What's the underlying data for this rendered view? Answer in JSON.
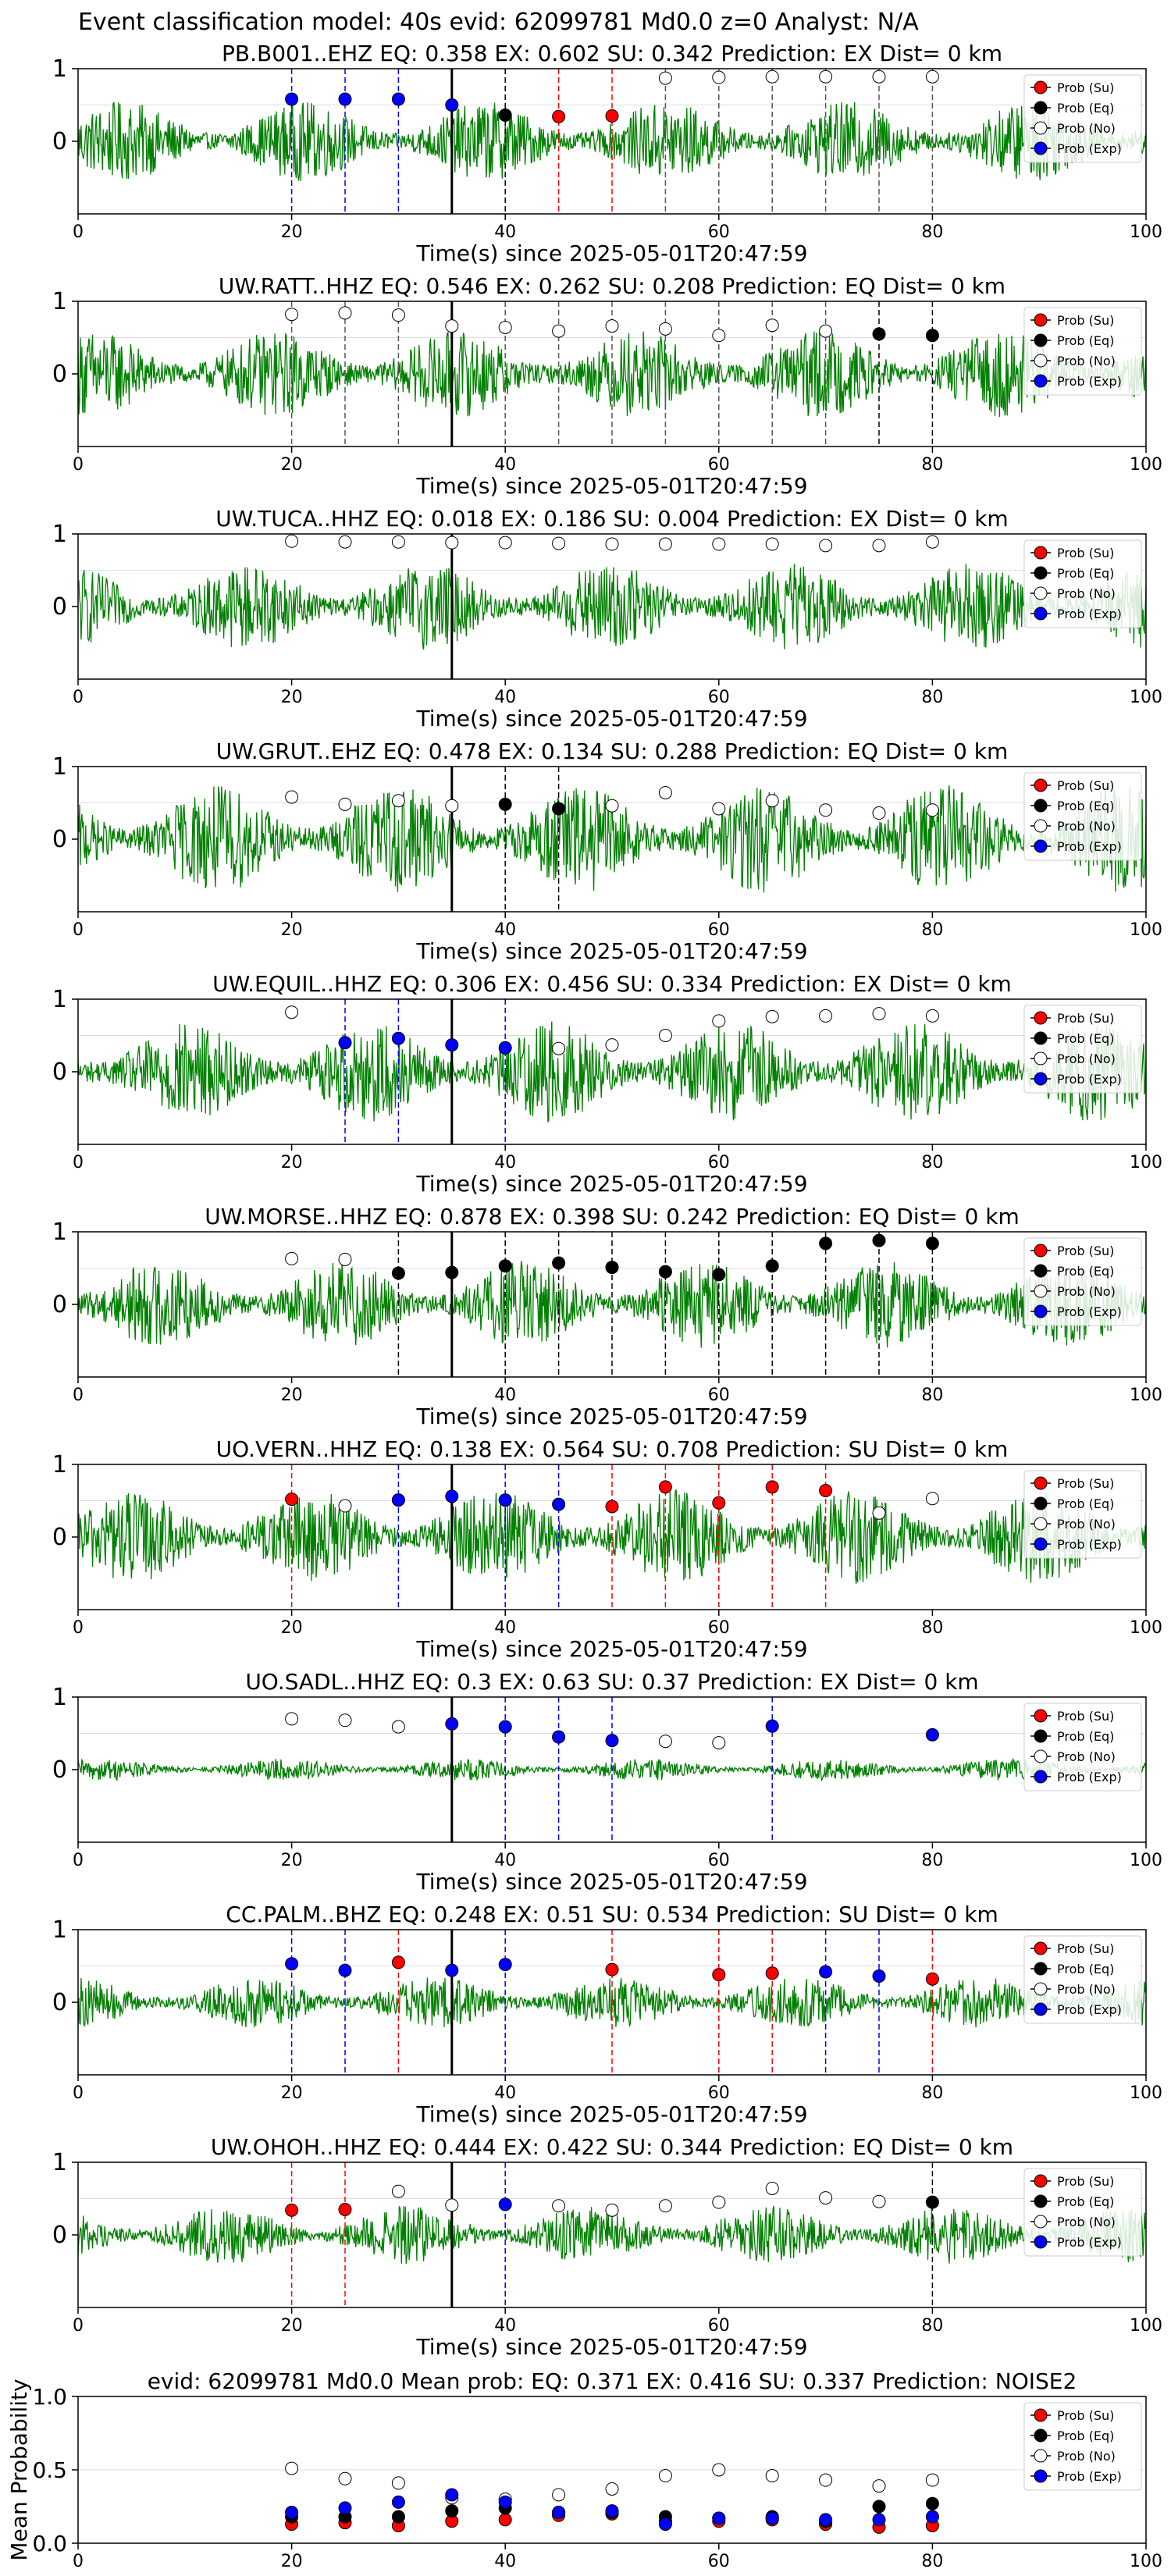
{
  "suptitle": "Event classification model: 40s evid: 62099781 Md0.0 z=0 Analyst: N/A",
  "colors": {
    "waveform": "#008000",
    "su": "#ff0000",
    "eq": "#000000",
    "no": "#ffffff",
    "exp": "#0000ff",
    "pick_line": "#000000"
  },
  "legend_labels": {
    "su": "Prob (Su)",
    "eq": "Prob (Eq)",
    "no": "Prob (No)",
    "exp": "Prob (Exp)"
  },
  "legend_placement": "top-right",
  "chart_data": [
    {
      "type": "line",
      "title": "PB.B001..EHZ   EQ: 0.358   EX: 0.602   SU: 0.342   Prediction: EX    Dist= 0 km",
      "xlabel": "Time(s) since 2025-05-01T20:47:59",
      "ylabel": "",
      "xlim": [
        0,
        100
      ],
      "ylim": [
        -1,
        1
      ],
      "x_ticks": [
        0,
        20,
        40,
        60,
        80,
        100
      ],
      "y_ticks": [
        0,
        1
      ],
      "pick_time": 35,
      "waveform_amplitude": 0.55,
      "windows": [
        20,
        25,
        30,
        35,
        40,
        45,
        50,
        55,
        60,
        65,
        70,
        75,
        80
      ],
      "points": [
        {
          "x": 20,
          "y": 0.58,
          "class": "exp"
        },
        {
          "x": 25,
          "y": 0.58,
          "class": "exp"
        },
        {
          "x": 30,
          "y": 0.58,
          "class": "exp"
        },
        {
          "x": 35,
          "y": 0.5,
          "class": "exp"
        },
        {
          "x": 40,
          "y": 0.36,
          "class": "eq"
        },
        {
          "x": 45,
          "y": 0.34,
          "class": "su"
        },
        {
          "x": 50,
          "y": 0.35,
          "class": "su"
        },
        {
          "x": 55,
          "y": 0.87,
          "class": "no"
        },
        {
          "x": 60,
          "y": 0.88,
          "class": "no"
        },
        {
          "x": 65,
          "y": 0.89,
          "class": "no"
        },
        {
          "x": 70,
          "y": 0.89,
          "class": "no"
        },
        {
          "x": 75,
          "y": 0.89,
          "class": "no"
        },
        {
          "x": 80,
          "y": 0.89,
          "class": "no"
        }
      ]
    },
    {
      "type": "line",
      "title": "UW.RATT..HHZ   EQ: 0.546   EX: 0.262   SU: 0.208   Prediction: EQ    Dist= 0 km",
      "xlabel": "Time(s) since 2025-05-01T20:47:59",
      "ylabel": "",
      "xlim": [
        0,
        100
      ],
      "ylim": [
        -1,
        1
      ],
      "x_ticks": [
        0,
        20,
        40,
        60,
        80,
        100
      ],
      "y_ticks": [
        0,
        1
      ],
      "pick_time": 35,
      "waveform_amplitude": 0.6,
      "windows": [
        20,
        25,
        30,
        35,
        40,
        45,
        50,
        55,
        60,
        65,
        70,
        75,
        80
      ],
      "points": [
        {
          "x": 20,
          "y": 0.82,
          "class": "no"
        },
        {
          "x": 25,
          "y": 0.84,
          "class": "no"
        },
        {
          "x": 30,
          "y": 0.81,
          "class": "no"
        },
        {
          "x": 35,
          "y": 0.66,
          "class": "no"
        },
        {
          "x": 40,
          "y": 0.64,
          "class": "no"
        },
        {
          "x": 45,
          "y": 0.59,
          "class": "no"
        },
        {
          "x": 50,
          "y": 0.66,
          "class": "no"
        },
        {
          "x": 55,
          "y": 0.62,
          "class": "no"
        },
        {
          "x": 60,
          "y": 0.53,
          "class": "no"
        },
        {
          "x": 65,
          "y": 0.67,
          "class": "no"
        },
        {
          "x": 70,
          "y": 0.59,
          "class": "no"
        },
        {
          "x": 75,
          "y": 0.55,
          "class": "eq"
        },
        {
          "x": 80,
          "y": 0.53,
          "class": "eq"
        }
      ]
    },
    {
      "type": "line",
      "title": "UW.TUCA..HHZ   EQ: 0.018   EX: 0.186   SU: 0.004   Prediction: EX    Dist= 0 km",
      "xlabel": "Time(s) since 2025-05-01T20:47:59",
      "ylabel": "",
      "xlim": [
        0,
        100
      ],
      "ylim": [
        -1,
        1
      ],
      "x_ticks": [
        0,
        20,
        40,
        60,
        80,
        100
      ],
      "y_ticks": [
        0,
        1
      ],
      "pick_time": 35,
      "waveform_amplitude": 0.6,
      "windows": [],
      "points": [
        {
          "x": 20,
          "y": 0.9,
          "class": "no"
        },
        {
          "x": 25,
          "y": 0.89,
          "class": "no"
        },
        {
          "x": 30,
          "y": 0.89,
          "class": "no"
        },
        {
          "x": 35,
          "y": 0.88,
          "class": "no"
        },
        {
          "x": 40,
          "y": 0.88,
          "class": "no"
        },
        {
          "x": 45,
          "y": 0.87,
          "class": "no"
        },
        {
          "x": 50,
          "y": 0.86,
          "class": "no"
        },
        {
          "x": 55,
          "y": 0.86,
          "class": "no"
        },
        {
          "x": 60,
          "y": 0.86,
          "class": "no"
        },
        {
          "x": 65,
          "y": 0.86,
          "class": "no"
        },
        {
          "x": 70,
          "y": 0.84,
          "class": "no"
        },
        {
          "x": 75,
          "y": 0.84,
          "class": "no"
        },
        {
          "x": 80,
          "y": 0.89,
          "class": "no"
        }
      ]
    },
    {
      "type": "line",
      "title": "UW.GRUT..EHZ   EQ: 0.478   EX: 0.134   SU: 0.288   Prediction: EQ    Dist= 0 km",
      "xlabel": "Time(s) since 2025-05-01T20:47:59",
      "ylabel": "",
      "xlim": [
        0,
        100
      ],
      "ylim": [
        -1,
        1
      ],
      "x_ticks": [
        0,
        20,
        40,
        60,
        80,
        100
      ],
      "y_ticks": [
        0,
        1
      ],
      "pick_time": 35,
      "waveform_amplitude": 0.75,
      "windows": [
        40,
        45
      ],
      "points": [
        {
          "x": 20,
          "y": 0.58,
          "class": "no"
        },
        {
          "x": 25,
          "y": 0.48,
          "class": "no"
        },
        {
          "x": 30,
          "y": 0.53,
          "class": "no"
        },
        {
          "x": 35,
          "y": 0.46,
          "class": "no"
        },
        {
          "x": 40,
          "y": 0.48,
          "class": "eq"
        },
        {
          "x": 45,
          "y": 0.42,
          "class": "eq"
        },
        {
          "x": 50,
          "y": 0.46,
          "class": "no"
        },
        {
          "x": 55,
          "y": 0.64,
          "class": "no"
        },
        {
          "x": 60,
          "y": 0.42,
          "class": "no"
        },
        {
          "x": 65,
          "y": 0.53,
          "class": "no"
        },
        {
          "x": 70,
          "y": 0.4,
          "class": "no"
        },
        {
          "x": 75,
          "y": 0.36,
          "class": "no"
        },
        {
          "x": 80,
          "y": 0.4,
          "class": "no"
        }
      ]
    },
    {
      "type": "line",
      "title": "UW.EQUIL..HHZ   EQ: 0.306   EX: 0.456   SU: 0.334   Prediction: EX    Dist= 0 km",
      "xlabel": "Time(s) since 2025-05-01T20:47:59",
      "ylabel": "",
      "xlim": [
        0,
        100
      ],
      "ylim": [
        -1,
        1
      ],
      "x_ticks": [
        0,
        20,
        40,
        60,
        80,
        100
      ],
      "y_ticks": [
        0,
        1
      ],
      "pick_time": 35,
      "waveform_amplitude": 0.7,
      "windows": [
        25,
        30,
        35,
        40
      ],
      "points": [
        {
          "x": 20,
          "y": 0.82,
          "class": "no"
        },
        {
          "x": 25,
          "y": 0.4,
          "class": "exp"
        },
        {
          "x": 30,
          "y": 0.46,
          "class": "exp"
        },
        {
          "x": 35,
          "y": 0.37,
          "class": "exp"
        },
        {
          "x": 40,
          "y": 0.33,
          "class": "exp"
        },
        {
          "x": 45,
          "y": 0.32,
          "class": "no"
        },
        {
          "x": 50,
          "y": 0.37,
          "class": "no"
        },
        {
          "x": 55,
          "y": 0.5,
          "class": "no"
        },
        {
          "x": 60,
          "y": 0.7,
          "class": "no"
        },
        {
          "x": 65,
          "y": 0.76,
          "class": "no"
        },
        {
          "x": 70,
          "y": 0.77,
          "class": "no"
        },
        {
          "x": 75,
          "y": 0.8,
          "class": "no"
        },
        {
          "x": 80,
          "y": 0.77,
          "class": "no"
        }
      ]
    },
    {
      "type": "line",
      "title": "UW.MORSE..HHZ   EQ: 0.878   EX: 0.398   SU: 0.242   Prediction: EQ    Dist= 0 km",
      "xlabel": "Time(s) since 2025-05-01T20:47:59",
      "ylabel": "",
      "xlim": [
        0,
        100
      ],
      "ylim": [
        -1,
        1
      ],
      "x_ticks": [
        0,
        20,
        40,
        60,
        80,
        100
      ],
      "y_ticks": [
        0,
        1
      ],
      "pick_time": 35,
      "waveform_amplitude": 0.6,
      "windows": [
        30,
        35,
        40,
        45,
        50,
        55,
        60,
        65,
        70,
        75,
        80
      ],
      "points": [
        {
          "x": 20,
          "y": 0.63,
          "class": "no"
        },
        {
          "x": 25,
          "y": 0.62,
          "class": "no"
        },
        {
          "x": 30,
          "y": 0.43,
          "class": "eq"
        },
        {
          "x": 35,
          "y": 0.44,
          "class": "eq"
        },
        {
          "x": 40,
          "y": 0.53,
          "class": "eq"
        },
        {
          "x": 45,
          "y": 0.57,
          "class": "eq"
        },
        {
          "x": 50,
          "y": 0.51,
          "class": "eq"
        },
        {
          "x": 55,
          "y": 0.45,
          "class": "eq"
        },
        {
          "x": 60,
          "y": 0.41,
          "class": "eq"
        },
        {
          "x": 65,
          "y": 0.53,
          "class": "eq"
        },
        {
          "x": 70,
          "y": 0.84,
          "class": "eq"
        },
        {
          "x": 75,
          "y": 0.88,
          "class": "eq"
        },
        {
          "x": 80,
          "y": 0.84,
          "class": "eq"
        }
      ]
    },
    {
      "type": "line",
      "title": "UO.VERN..HHZ   EQ: 0.138   EX: 0.564   SU: 0.708   Prediction: SU    Dist= 0 km",
      "xlabel": "Time(s) since 2025-05-01T20:47:59",
      "ylabel": "",
      "xlim": [
        0,
        100
      ],
      "ylim": [
        -1,
        1
      ],
      "x_ticks": [
        0,
        20,
        40,
        60,
        80,
        100
      ],
      "y_ticks": [
        0,
        1
      ],
      "pick_time": 35,
      "waveform_amplitude": 0.65,
      "windows": [
        20,
        30,
        35,
        40,
        45,
        50,
        55,
        60,
        65,
        70
      ],
      "points": [
        {
          "x": 20,
          "y": 0.52,
          "class": "su"
        },
        {
          "x": 25,
          "y": 0.43,
          "class": "no"
        },
        {
          "x": 30,
          "y": 0.51,
          "class": "exp"
        },
        {
          "x": 35,
          "y": 0.56,
          "class": "exp"
        },
        {
          "x": 40,
          "y": 0.51,
          "class": "exp"
        },
        {
          "x": 45,
          "y": 0.45,
          "class": "exp"
        },
        {
          "x": 50,
          "y": 0.42,
          "class": "su"
        },
        {
          "x": 55,
          "y": 0.69,
          "class": "su"
        },
        {
          "x": 60,
          "y": 0.47,
          "class": "su"
        },
        {
          "x": 65,
          "y": 0.69,
          "class": "su"
        },
        {
          "x": 70,
          "y": 0.64,
          "class": "su"
        },
        {
          "x": 75,
          "y": 0.33,
          "class": "no"
        },
        {
          "x": 80,
          "y": 0.53,
          "class": "no"
        }
      ]
    },
    {
      "type": "line",
      "title": "UO.SADL..HHZ   EQ: 0.3   EX: 0.63   SU: 0.37   Prediction: EX    Dist= 0 km",
      "xlabel": "Time(s) since 2025-05-01T20:47:59",
      "ylabel": "",
      "xlim": [
        0,
        100
      ],
      "ylim": [
        -1,
        1
      ],
      "x_ticks": [
        0,
        20,
        40,
        60,
        80,
        100
      ],
      "y_ticks": [
        0,
        1
      ],
      "pick_time": 35,
      "waveform_amplitude": 0.15,
      "windows": [
        40,
        45,
        50,
        65
      ],
      "points": [
        {
          "x": 20,
          "y": 0.7,
          "class": "no"
        },
        {
          "x": 25,
          "y": 0.68,
          "class": "no"
        },
        {
          "x": 30,
          "y": 0.59,
          "class": "no"
        },
        {
          "x": 35,
          "y": 0.63,
          "class": "exp"
        },
        {
          "x": 40,
          "y": 0.59,
          "class": "exp"
        },
        {
          "x": 45,
          "y": 0.45,
          "class": "exp"
        },
        {
          "x": 50,
          "y": 0.4,
          "class": "exp"
        },
        {
          "x": 55,
          "y": 0.39,
          "class": "no"
        },
        {
          "x": 60,
          "y": 0.37,
          "class": "no"
        },
        {
          "x": 65,
          "y": 0.6,
          "class": "exp"
        },
        {
          "x": 80,
          "y": 0.48,
          "class": "exp"
        }
      ]
    },
    {
      "type": "line",
      "title": "CC.PALM..BHZ   EQ: 0.248   EX: 0.51   SU: 0.534   Prediction: SU    Dist= 0 km",
      "xlabel": "Time(s) since 2025-05-01T20:47:59",
      "ylabel": "",
      "xlim": [
        0,
        100
      ],
      "ylim": [
        -1,
        1
      ],
      "x_ticks": [
        0,
        20,
        40,
        60,
        80,
        100
      ],
      "y_ticks": [
        0,
        1
      ],
      "pick_time": 35,
      "waveform_amplitude": 0.35,
      "windows": [
        20,
        25,
        30,
        35,
        40,
        50,
        60,
        65,
        70,
        75,
        80
      ],
      "points": [
        {
          "x": 20,
          "y": 0.53,
          "class": "exp"
        },
        {
          "x": 25,
          "y": 0.44,
          "class": "exp"
        },
        {
          "x": 30,
          "y": 0.55,
          "class": "su"
        },
        {
          "x": 35,
          "y": 0.44,
          "class": "exp"
        },
        {
          "x": 40,
          "y": 0.52,
          "class": "exp"
        },
        {
          "x": 50,
          "y": 0.45,
          "class": "su"
        },
        {
          "x": 60,
          "y": 0.38,
          "class": "su"
        },
        {
          "x": 65,
          "y": 0.4,
          "class": "su"
        },
        {
          "x": 70,
          "y": 0.42,
          "class": "exp"
        },
        {
          "x": 75,
          "y": 0.36,
          "class": "exp"
        },
        {
          "x": 80,
          "y": 0.32,
          "class": "su"
        }
      ]
    },
    {
      "type": "line",
      "title": "UW.OHOH..HHZ   EQ: 0.444   EX: 0.422   SU: 0.344   Prediction: EQ    Dist= 0 km",
      "xlabel": "Time(s) since 2025-05-01T20:47:59",
      "ylabel": "",
      "xlim": [
        0,
        100
      ],
      "ylim": [
        -1,
        1
      ],
      "x_ticks": [
        0,
        20,
        40,
        60,
        80,
        100
      ],
      "y_ticks": [
        0,
        1
      ],
      "pick_time": 35,
      "waveform_amplitude": 0.4,
      "windows": [
        20,
        25,
        40,
        80
      ],
      "points": [
        {
          "x": 20,
          "y": 0.34,
          "class": "su"
        },
        {
          "x": 25,
          "y": 0.35,
          "class": "su"
        },
        {
          "x": 30,
          "y": 0.6,
          "class": "no"
        },
        {
          "x": 35,
          "y": 0.41,
          "class": "no"
        },
        {
          "x": 40,
          "y": 0.42,
          "class": "exp"
        },
        {
          "x": 45,
          "y": 0.4,
          "class": "no"
        },
        {
          "x": 50,
          "y": 0.34,
          "class": "no"
        },
        {
          "x": 55,
          "y": 0.4,
          "class": "no"
        },
        {
          "x": 60,
          "y": 0.45,
          "class": "no"
        },
        {
          "x": 65,
          "y": 0.64,
          "class": "no"
        },
        {
          "x": 70,
          "y": 0.51,
          "class": "no"
        },
        {
          "x": 75,
          "y": 0.46,
          "class": "no"
        },
        {
          "x": 80,
          "y": 0.45,
          "class": "eq"
        }
      ]
    },
    {
      "type": "scatter",
      "title": "evid: 62099781   Md0.0    Mean prob:    EQ: 0.371   EX: 0.416   SU: 0.337   Prediction: NOISE2",
      "xlabel": "",
      "ylabel": "Mean Probability",
      "xlim": [
        0,
        100
      ],
      "ylim": [
        0,
        1
      ],
      "x_ticks": [
        0,
        20,
        40,
        60,
        80,
        100
      ],
      "y_ticks": [
        0.0,
        0.5,
        1.0
      ],
      "y_tick_labels": [
        "0.0",
        "0.5",
        "1.0"
      ],
      "grid": true,
      "x": [
        20,
        25,
        30,
        35,
        40,
        45,
        50,
        55,
        60,
        65,
        70,
        75,
        80
      ],
      "series": [
        {
          "name": "Prob (Su)",
          "class": "su",
          "values": [
            0.13,
            0.14,
            0.12,
            0.15,
            0.16,
            0.19,
            0.2,
            0.15,
            0.15,
            0.16,
            0.13,
            0.11,
            0.12
          ]
        },
        {
          "name": "Prob (Eq)",
          "class": "eq",
          "values": [
            0.18,
            0.18,
            0.18,
            0.22,
            0.24,
            0.21,
            0.21,
            0.18,
            0.17,
            0.18,
            0.15,
            0.25,
            0.27
          ]
        },
        {
          "name": "Prob (No)",
          "class": "no",
          "values": [
            0.51,
            0.44,
            0.41,
            0.31,
            0.3,
            0.33,
            0.37,
            0.46,
            0.5,
            0.46,
            0.43,
            0.39,
            0.43
          ]
        },
        {
          "name": "Prob (Exp)",
          "class": "exp",
          "values": [
            0.21,
            0.24,
            0.28,
            0.33,
            0.28,
            0.21,
            0.22,
            0.13,
            0.17,
            0.17,
            0.16,
            0.16,
            0.18
          ]
        }
      ]
    }
  ]
}
